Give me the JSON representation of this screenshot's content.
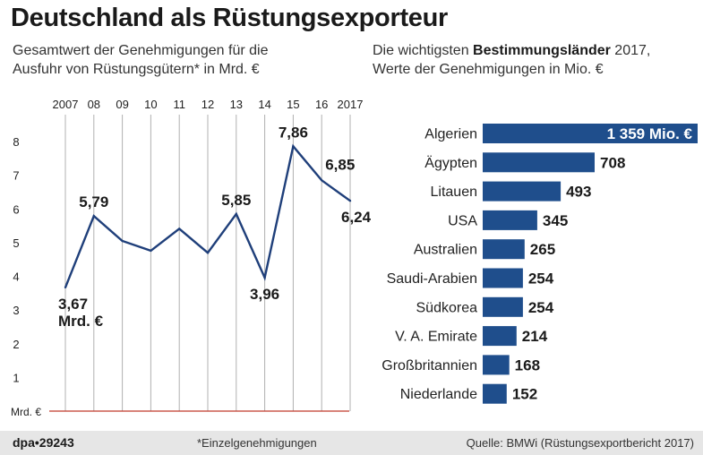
{
  "title": "Deutschland als Rüstungsexporteur",
  "left_subtitle": {
    "line1": "Gesamtwert der Genehmigungen für die",
    "line2": "Ausfuhr von Rüstungsgütern* in Mrd. €"
  },
  "right_subtitle": {
    "line1_prefix": "Die wichtigsten ",
    "line1_bold": "Bestimmungsländer",
    "line1_suffix": " 2017,",
    "line2": "Werte der Genehmigungen in Mio. €"
  },
  "colors": {
    "bar": "#1f4e8c",
    "line": "#1f3f7a",
    "baseline": "#c0392b",
    "grid": "#b0b0b0"
  },
  "chart_data": [
    {
      "type": "line",
      "title": "Gesamtwert der Genehmigungen für die Ausfuhr von Rüstungsgütern* in Mrd. €",
      "x_labels": [
        "2007",
        "08",
        "09",
        "10",
        "11",
        "12",
        "13",
        "14",
        "15",
        "16",
        "2017"
      ],
      "values": [
        3.67,
        5.79,
        5.05,
        4.76,
        5.41,
        4.7,
        5.85,
        3.96,
        7.86,
        6.85,
        6.24
      ],
      "y_ticks": [
        "8",
        "7",
        "6",
        "5",
        "4",
        "3",
        "2",
        "1"
      ],
      "y_tick_values": [
        8,
        7,
        6,
        5,
        4,
        3,
        2,
        1
      ],
      "ylim": [
        0,
        8
      ],
      "y_unit_label": "Mrd. €",
      "grid": "vertical",
      "annotations": [
        {
          "index": 0,
          "text": "3,67",
          "position": "below"
        },
        {
          "index": 0,
          "text": "Mrd. €",
          "position": "below-2"
        },
        {
          "index": 1,
          "text": "5,79",
          "position": "above"
        },
        {
          "index": 6,
          "text": "5,85",
          "position": "above"
        },
        {
          "index": 7,
          "text": "3,96",
          "position": "below"
        },
        {
          "index": 8,
          "text": "7,86",
          "position": "above"
        },
        {
          "index": 9,
          "text": "6,85",
          "position": "right"
        },
        {
          "index": 10,
          "text": "6,24",
          "position": "below"
        }
      ]
    },
    {
      "type": "bar",
      "orientation": "horizontal",
      "title": "Die wichtigsten Bestimmungsländer 2017, Werte der Genehmigungen in Mio. €",
      "categories": [
        "Algerien",
        "Ägypten",
        "Litauen",
        "USA",
        "Australien",
        "Saudi-Arabien",
        "Südkorea",
        "V. A. Emirate",
        "Großbritannien",
        "Niederlande"
      ],
      "values": [
        1359,
        708,
        493,
        345,
        265,
        254,
        254,
        214,
        168,
        152
      ],
      "value_labels": [
        "1 359 Mio. €",
        "708",
        "493",
        "345",
        "265",
        "254",
        "254",
        "214",
        "168",
        "152"
      ],
      "xlim": [
        0,
        1359
      ]
    }
  ],
  "footer": {
    "logo_left": "dpa",
    "logo_dot": "•",
    "logo_number": "29243",
    "note": "*Einzelgenehmigungen",
    "source": "Quelle: BMWi (Rüstungsexportbericht 2017)"
  }
}
